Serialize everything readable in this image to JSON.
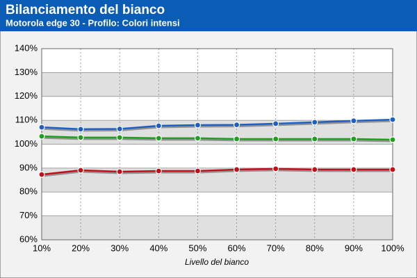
{
  "chart_data": {
    "type": "line",
    "title": "Bilanciamento del bianco",
    "subtitle": "Motorola edge 30 - Profilo: Colori intensi",
    "x_label": "Livello del bianco",
    "x": [
      10,
      20,
      30,
      40,
      50,
      60,
      70,
      80,
      90,
      100
    ],
    "xlim": [
      10,
      100
    ],
    "xticks": [
      {
        "value": 10,
        "label": "10%"
      },
      {
        "value": 20,
        "label": "20%"
      },
      {
        "value": 30,
        "label": "30%"
      },
      {
        "value": 40,
        "label": "40%"
      },
      {
        "value": 50,
        "label": "50%"
      },
      {
        "value": 60,
        "label": "60%"
      },
      {
        "value": 70,
        "label": "70%"
      },
      {
        "value": 80,
        "label": "80%"
      },
      {
        "value": 90,
        "label": "90%"
      },
      {
        "value": 100,
        "label": "100%"
      }
    ],
    "ylim": [
      60,
      140
    ],
    "yticks": [
      {
        "value": 60,
        "label": "60%"
      },
      {
        "value": 70,
        "label": "70%"
      },
      {
        "value": 80,
        "label": "80%"
      },
      {
        "value": 90,
        "label": "90%"
      },
      {
        "value": 100,
        "label": "100%"
      },
      {
        "value": 110,
        "label": "110%"
      },
      {
        "value": 120,
        "label": "120%"
      },
      {
        "value": 130,
        "label": "130%"
      },
      {
        "value": 140,
        "label": "140%"
      }
    ],
    "grid": true,
    "series": [
      {
        "color": "#1f5fc4",
        "values": [
          107.1,
          106.3,
          106.4,
          107.7,
          108.0,
          108.1,
          108.6,
          109.2,
          109.8,
          110.3
        ]
      },
      {
        "color": "#1f9e1f",
        "values": [
          103.3,
          102.8,
          102.8,
          102.5,
          102.5,
          102.2,
          102.2,
          102.2,
          102.2,
          101.9
        ]
      },
      {
        "color": "#c0101a",
        "values": [
          87.3,
          89.1,
          88.5,
          88.8,
          88.8,
          89.4,
          89.7,
          89.4,
          89.4,
          89.4
        ]
      }
    ]
  }
}
